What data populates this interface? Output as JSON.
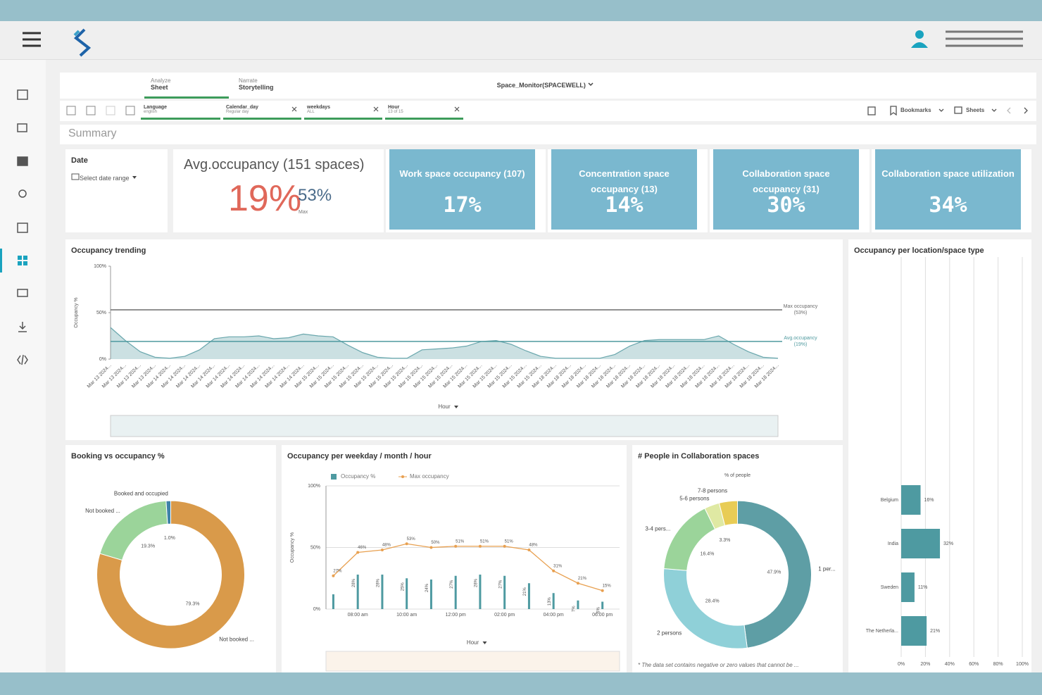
{
  "toolbar": {
    "tabs": [
      {
        "label": "Analyze",
        "value": "Sheet"
      },
      {
        "label": "Narrate",
        "value": "Storytelling"
      }
    ],
    "app_title": "Space_Monitor(SPACEWELL)",
    "bookmarks": "Bookmarks",
    "sheets": "Sheets"
  },
  "filters": [
    {
      "field": "Language",
      "selection": "english"
    },
    {
      "field": "Calendar_day",
      "selection": "Regular day"
    },
    {
      "field": "weekdays",
      "selection": "ALL"
    },
    {
      "field": "Hour",
      "selection": "13 of 15"
    }
  ],
  "sheet_title": "Summary",
  "date_filter": {
    "title": "Date",
    "placeholder": "Select date range"
  },
  "avg_kpi": {
    "title": "Avg.occupancy (151 spaces)",
    "value": "19%",
    "max": "53%",
    "max_caption": "Max"
  },
  "kpi_tiles": [
    {
      "title": "Work space occupancy (107)",
      "value": "17%"
    },
    {
      "title": "Concentration space occupancy (13)",
      "value": "14%"
    },
    {
      "title": "Collaboration space occupancy (31)",
      "value": "30%"
    },
    {
      "title": "Collaboration space utilization",
      "value": "34%"
    }
  ],
  "chart_data": [
    {
      "type": "area",
      "title": "Occupancy trending",
      "y_label": "Occupancy %",
      "x_label": "Hour",
      "color": "#6aa7ad",
      "categories": [
        "Mar 13 2024...",
        "Mar 13 2024...",
        "Mar 13 2024...",
        "Mar 13 2024...",
        "Mar 14 2024...",
        "Mar 14 2024...",
        "Mar 14 2024...",
        "Mar 14 2024...",
        "Mar 14 2024...",
        "Mar 14 2024...",
        "Mar 14 2024...",
        "Mar 14 2024...",
        "Mar 14 2024...",
        "Mar 14 2024...",
        "Mar 15 2024...",
        "Mar 15 2024...",
        "Mar 15 2024...",
        "Mar 15 2024...",
        "Mar 15 2024...",
        "Mar 15 2024...",
        "Mar 15 2024...",
        "Mar 15 2024...",
        "Mar 15 2024...",
        "Mar 15 2024...",
        "Mar 15 2024...",
        "Mar 15 2024...",
        "Mar 15 2024...",
        "Mar 15 2024...",
        "Mar 15 2024...",
        "Mar 15 2024...",
        "Mar 18 2024...",
        "Mar 18 2024...",
        "Mar 18 2024...",
        "Mar 18 2024...",
        "Mar 18 2024...",
        "Mar 18 2024...",
        "Mar 18 2024...",
        "Mar 18 2024...",
        "Mar 18 2024...",
        "Mar 18 2024...",
        "Mar 18 2024...",
        "Mar 18 2024...",
        "Mar 18 2024...",
        "Mar 18 2024...",
        "Mar 18 2024...",
        "Mar 18 2024..."
      ],
      "values": [
        34,
        20,
        8,
        2,
        1,
        3,
        10,
        22,
        24,
        24,
        25,
        22,
        23,
        27,
        25,
        24,
        15,
        7,
        2,
        1,
        1,
        10,
        11,
        12,
        14,
        19,
        20,
        16,
        9,
        3,
        1,
        1,
        1,
        1,
        5,
        14,
        20,
        21,
        21,
        21,
        21,
        25,
        16,
        8,
        2,
        1
      ],
      "ylim": [
        0,
        100
      ],
      "yticks": [
        {
          "value": 0,
          "label": "0%"
        },
        {
          "value": 50,
          "label": "50%"
        },
        {
          "value": 100,
          "label": "100%"
        }
      ],
      "reference_lines": [
        {
          "label": "Max occupancy",
          "value_label": "(53%)",
          "value": 53,
          "color": "#6b6b6b"
        },
        {
          "label": "Avg.occupancy",
          "value_label": "(19%)",
          "value": 19,
          "color": "#4f9a9f"
        }
      ]
    },
    {
      "type": "bar",
      "orientation": "horizontal",
      "title": "Occupancy per location/space type",
      "color": "#4e9aa1",
      "categories": [
        "Belgium",
        "India",
        "Sweden",
        "The Netherla..."
      ],
      "values": [
        16,
        32,
        11,
        21
      ],
      "value_labels": [
        "16%",
        "32%",
        "11%",
        "21%"
      ],
      "xlim": [
        0,
        100
      ],
      "xticks": [
        {
          "value": 0,
          "label": "0%"
        },
        {
          "value": 20,
          "label": "20%"
        },
        {
          "value": 40,
          "label": "40%"
        },
        {
          "value": 60,
          "label": "60%"
        },
        {
          "value": 80,
          "label": "80%"
        },
        {
          "value": 100,
          "label": "100%"
        }
      ],
      "grid": true
    },
    {
      "type": "pie",
      "title": "Booking vs occupancy %",
      "categories": [
        "Not booked ...",
        "Not booked ...",
        "Booked and occupied"
      ],
      "values": [
        79.3,
        19.3,
        1.0
      ],
      "value_labels": [
        "79.3%",
        "19.3%",
        "1.0%"
      ],
      "colors": [
        "#d99a4a",
        "#9bd49a",
        "#3e82a8"
      ]
    },
    {
      "type": "combo",
      "title": "Occupancy per weekday / month / hour",
      "y_label": "Occupancy %",
      "x_label": "Hour",
      "categories": [
        null,
        "08:00 am",
        null,
        "10:00 am",
        null,
        "12:00 pm",
        null,
        "02:00 pm",
        null,
        "04:00 pm",
        null,
        "06:00 pm"
      ],
      "series": [
        {
          "name": "Occupancy %",
          "kind": "bar",
          "color": "#4e9aa1",
          "values": [
            12,
            28,
            28,
            25,
            24,
            27,
            28,
            27,
            21,
            13,
            7,
            6
          ],
          "value_labels": [
            null,
            "28%",
            "28%",
            "25%",
            "24%",
            "27%",
            "28%",
            "27%",
            "21%",
            "13%",
            "7%",
            "6%"
          ]
        },
        {
          "name": "Max occupancy",
          "kind": "line",
          "color": "#e8a050",
          "values": [
            27,
            46,
            48,
            53,
            50,
            51,
            51,
            51,
            48,
            31,
            21,
            15
          ],
          "value_labels": [
            "27%",
            "46%",
            "48%",
            "53%",
            "50%",
            "51%",
            "51%",
            "51%",
            "48%",
            "31%",
            "21%",
            "15%"
          ]
        }
      ],
      "ylim": [
        0,
        100
      ],
      "yticks": [
        {
          "value": 0,
          "label": "0%"
        },
        {
          "value": 50,
          "label": "50%"
        },
        {
          "value": 100,
          "label": "100%"
        }
      ],
      "grid": true
    },
    {
      "type": "pie",
      "title": "# People in Collaboration spaces",
      "subtitle": "% of people",
      "note": "* The data set contains negative or zero values that cannot be ...",
      "categories": [
        "1 per...",
        "2 persons",
        "3-4 pers...",
        "5-6 persons",
        "7-8 persons"
      ],
      "values": [
        47.9,
        28.4,
        16.4,
        3.3,
        4.0
      ],
      "value_labels": [
        "47.9%",
        "28.4%",
        "16.4%",
        "3.3%",
        null
      ],
      "colors": [
        "#5e9ea5",
        "#8fd0d8",
        "#9bd49a",
        "#dfe9a3",
        "#e8cc55"
      ]
    }
  ]
}
